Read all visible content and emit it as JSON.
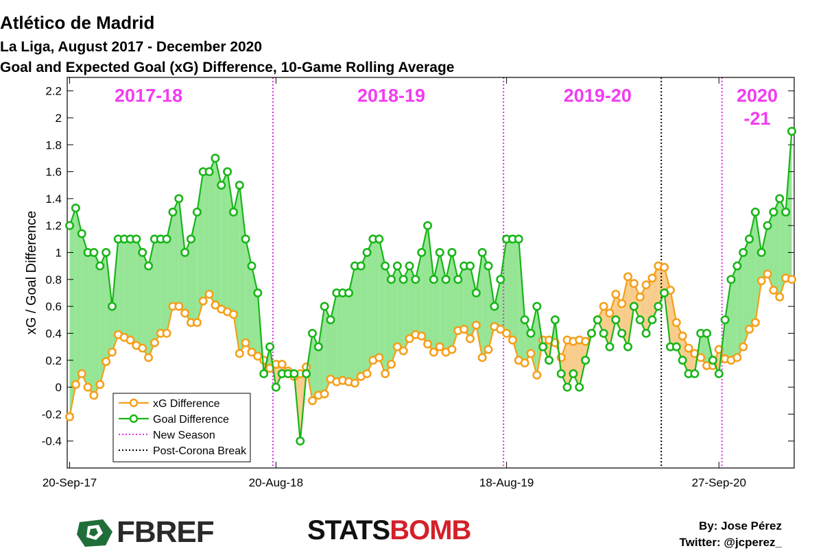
{
  "title": "Atlético de Madrid",
  "subtitle1": "La Liga, August 2017 - December 2020",
  "subtitle2": "Goal and Expected Goal (xG) Difference, 10-Game Rolling Average",
  "chart_data": {
    "type": "line",
    "ylabel": "xG / Goal Difference",
    "xlabel": "",
    "ylim": [
      -0.6,
      2.3
    ],
    "yticks": [
      -0.4,
      -0.2,
      0,
      0.2,
      0.4,
      0.6,
      0.8,
      1,
      1.2,
      1.4,
      1.6,
      1.8,
      2,
      2.2
    ],
    "ytick_labels": [
      "-0.4",
      "-0.2",
      "0",
      "0.2",
      "0.4",
      "0.6",
      "0.8",
      "1",
      "1.2",
      "1.4",
      "1.6",
      "1.8",
      "2",
      "2.2"
    ],
    "xlim": [
      1,
      120
    ],
    "xticks": [
      {
        "x": 1,
        "label": "20-Sep-17"
      },
      {
        "x": 35,
        "label": "20-Aug-18"
      },
      {
        "x": 73,
        "label": "18-Aug-19"
      },
      {
        "x": 108,
        "label": "27-Sep-20"
      }
    ],
    "series": [
      {
        "name": "xG Difference",
        "color": "#f59f19",
        "fill_color": "#f8cd8c",
        "values": [
          -0.22,
          0.02,
          0.1,
          0.0,
          -0.06,
          0.02,
          0.19,
          0.26,
          0.39,
          0.37,
          0.35,
          0.31,
          0.29,
          0.22,
          0.33,
          0.4,
          0.4,
          0.6,
          0.6,
          0.55,
          0.48,
          0.48,
          0.64,
          0.69,
          0.61,
          0.58,
          0.56,
          0.54,
          0.25,
          0.33,
          0.26,
          0.23,
          0.2,
          0.14,
          0.17,
          0.17,
          0.12,
          0.08,
          0.1,
          0.15,
          -0.1,
          -0.06,
          -0.05,
          0.06,
          0.04,
          0.05,
          0.04,
          0.03,
          0.08,
          0.1,
          0.2,
          0.22,
          0.1,
          0.17,
          0.3,
          0.27,
          0.36,
          0.39,
          0.38,
          0.32,
          0.26,
          0.3,
          0.26,
          0.28,
          0.42,
          0.43,
          0.36,
          0.46,
          0.22,
          0.28,
          0.45,
          0.43,
          0.4,
          0.35,
          0.2,
          0.18,
          0.25,
          0.09,
          0.35,
          0.35,
          0.33,
          0.22,
          0.35,
          0.34,
          0.35,
          0.34,
          0.4,
          0.5,
          0.6,
          0.55,
          0.69,
          0.62,
          0.82,
          0.77,
          0.67,
          0.76,
          0.81,
          0.9,
          0.89,
          0.72,
          0.48,
          0.38,
          0.29,
          0.25,
          0.22,
          0.16,
          0.16,
          0.28,
          0.21,
          0.2,
          0.22,
          0.3,
          0.43,
          0.48,
          0.79,
          0.84,
          0.72,
          0.67,
          0.81,
          0.8
        ]
      },
      {
        "name": "Goal Difference",
        "color": "#17b517",
        "fill_color": "#95e595",
        "values": [
          1.2,
          1.33,
          1.14,
          1.0,
          1.0,
          0.9,
          1.0,
          0.6,
          1.1,
          1.1,
          1.1,
          1.1,
          1.0,
          0.9,
          1.1,
          1.1,
          1.1,
          1.3,
          1.4,
          1.0,
          1.1,
          1.3,
          1.6,
          1.6,
          1.7,
          1.5,
          1.6,
          1.3,
          1.5,
          1.1,
          0.9,
          0.7,
          0.1,
          0.3,
          0.0,
          0.1,
          0.1,
          0.1,
          -0.4,
          0.1,
          0.4,
          0.3,
          0.6,
          0.5,
          0.7,
          0.7,
          0.7,
          0.9,
          0.9,
          1.0,
          1.1,
          1.1,
          0.9,
          0.8,
          0.9,
          0.8,
          0.9,
          0.8,
          1.0,
          1.2,
          0.8,
          1.0,
          0.8,
          1.0,
          0.8,
          0.9,
          0.9,
          0.7,
          1.0,
          0.9,
          0.6,
          0.8,
          1.1,
          1.1,
          1.1,
          0.5,
          0.4,
          0.6,
          0.3,
          0.2,
          0.5,
          0.1,
          0.0,
          0.1,
          0.0,
          0.2,
          0.4,
          0.5,
          0.4,
          0.3,
          0.5,
          0.4,
          0.3,
          0.6,
          0.5,
          0.4,
          0.5,
          0.6,
          0.7,
          0.3,
          0.3,
          0.2,
          0.1,
          0.1,
          0.4,
          0.4,
          0.2,
          0.1,
          0.5,
          0.8,
          0.9,
          1.0,
          1.1,
          1.3,
          1.0,
          1.2,
          1.3,
          1.4,
          1.3,
          1.9
        ]
      }
    ],
    "season_lines_x": [
      34.5,
      72.5,
      108.5
    ],
    "corona_line_x": 98.5,
    "season_labels": [
      {
        "text": "2017-18",
        "x": 14,
        "y": 2.17
      },
      {
        "text": "2018-19",
        "x": 54,
        "y": 2.17
      },
      {
        "text": "2019-20",
        "x": 88,
        "y": 2.17
      },
      {
        "text": "2020",
        "x": 114.3,
        "y": 2.17
      },
      {
        "text": "-21",
        "x": 114.3,
        "y": 2.0
      }
    ],
    "season_label_color": "#f23cf2",
    "legend_placement": "bottom-left",
    "legend": [
      {
        "label": "xG Difference",
        "style": "orange-line-marker"
      },
      {
        "label": "Goal Difference",
        "style": "green-line-marker"
      },
      {
        "label": "New Season",
        "style": "magenta-dotted"
      },
      {
        "label": "Post-Corona Break",
        "style": "black-dotted"
      }
    ],
    "grid": false
  },
  "footer": {
    "fbref_logo_text": "FBREF",
    "statsbomb_stats": "STATS",
    "statsbomb_bomb": "BOMB",
    "credit_line1": "By: Jose Pérez",
    "credit_line2": "Twitter: @jcperez_"
  }
}
